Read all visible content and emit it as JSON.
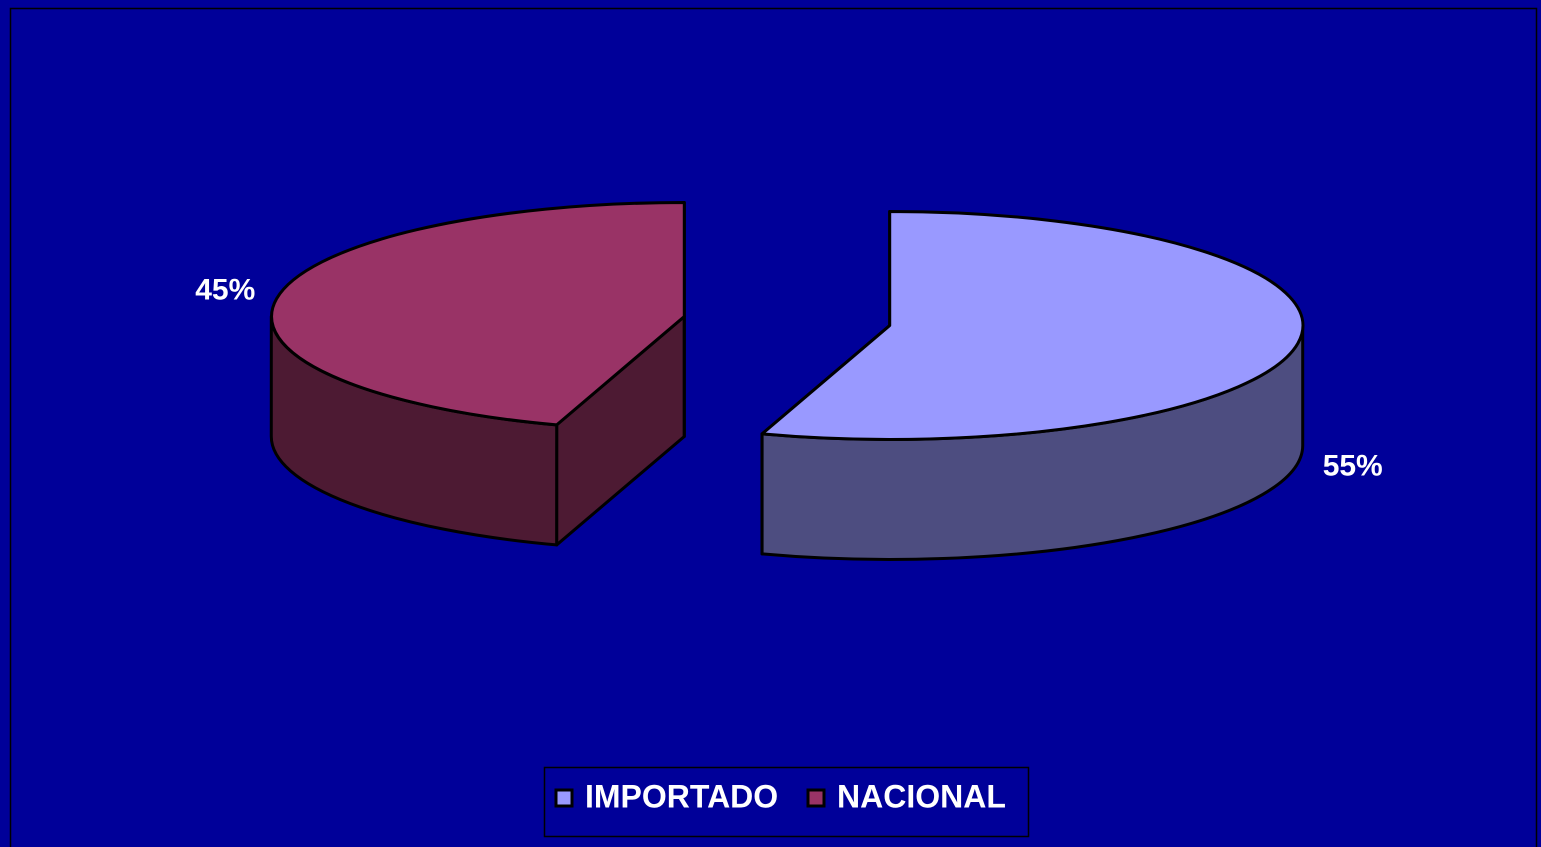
{
  "chart_data": {
    "type": "pie",
    "categories": [
      "IMPORTADO",
      "NACIONAL"
    ],
    "values": [
      55,
      45
    ],
    "value_labels": [
      "55%",
      "45%"
    ],
    "colors": [
      "#9999FF",
      "#993366"
    ],
    "legend": "bottom"
  }
}
